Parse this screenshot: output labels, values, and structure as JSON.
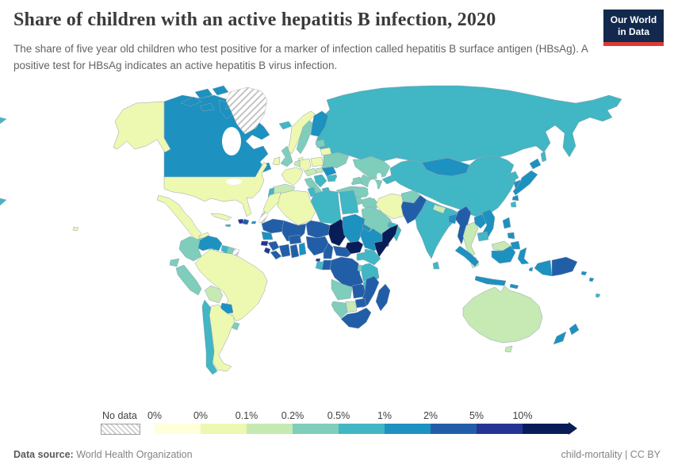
{
  "header": {
    "title": "Share of children with an active hepatitis B infection, 2020",
    "subtitle": "The share of five year old children who test positive for a marker of infection called hepatitis B surface antigen (HBsAg). A positive test for HBsAg indicates an active hepatitis B virus infection.",
    "logo": {
      "line1": "Our World",
      "line2": "in Data",
      "bg_color": "#12294d",
      "accent_color": "#dc3a34"
    }
  },
  "footer": {
    "datasource_label": "Data source:",
    "datasource_value": "World Health Organization",
    "rights": "child-mortality | CC BY"
  },
  "chart_data": {
    "type": "choropleth",
    "title": "Share of children with an active hepatitis B infection, 2020",
    "year": "2020",
    "unit": "%",
    "legend": {
      "no_data_label": "No data",
      "tick_labels": [
        "0%",
        "0%",
        "0.1%",
        "0.2%",
        "0.5%",
        "1%",
        "2%",
        "5%",
        "10%"
      ],
      "colors": [
        "#ffffd9",
        "#edf8b1",
        "#c7e9b4",
        "#7fcdbb",
        "#41b6c4",
        "#1d91c0",
        "#225ea8",
        "#253494",
        "#081d58"
      ],
      "no_data_pattern": "diagonal-hatch"
    },
    "regions": [
      {
        "id": "russia",
        "name": "Russia",
        "bin": 5
      },
      {
        "id": "canada",
        "name": "Canada",
        "bin": 6
      },
      {
        "id": "greenland",
        "name": "Greenland",
        "bin": 0
      },
      {
        "id": "usa",
        "name": "United States",
        "bin": 2
      },
      {
        "id": "mexico",
        "name": "Mexico",
        "bin": 2
      },
      {
        "id": "guatemala",
        "name": "Guatemala",
        "bin": 4
      },
      {
        "id": "honduras",
        "name": "Honduras",
        "bin": 4
      },
      {
        "id": "nicaragua",
        "name": "Nicaragua",
        "bin": 4
      },
      {
        "id": "costa-rica",
        "name": "Costa Rica",
        "bin": 5
      },
      {
        "id": "panama",
        "name": "Panama",
        "bin": 5
      },
      {
        "id": "cuba",
        "name": "Cuba",
        "bin": 2
      },
      {
        "id": "jamaica",
        "name": "Jamaica",
        "bin": 5
      },
      {
        "id": "haiti",
        "name": "Haiti",
        "bin": 8
      },
      {
        "id": "dominican-republic",
        "name": "Dominican Republic",
        "bin": 7
      },
      {
        "id": "puerto-rico",
        "name": "Puerto Rico",
        "bin": 6
      },
      {
        "id": "colombia",
        "name": "Colombia",
        "bin": 4
      },
      {
        "id": "venezuela",
        "name": "Venezuela",
        "bin": 6
      },
      {
        "id": "guyana",
        "name": "Guyana",
        "bin": 5
      },
      {
        "id": "suriname",
        "name": "Suriname",
        "bin": 4
      },
      {
        "id": "french-guiana",
        "name": "French Guiana",
        "bin": 0
      },
      {
        "id": "ecuador",
        "name": "Ecuador",
        "bin": 4
      },
      {
        "id": "peru",
        "name": "Peru",
        "bin": 4
      },
      {
        "id": "brazil",
        "name": "Brazil",
        "bin": 2
      },
      {
        "id": "bolivia",
        "name": "Bolivia",
        "bin": 3
      },
      {
        "id": "paraguay",
        "name": "Paraguay",
        "bin": 6
      },
      {
        "id": "uruguay",
        "name": "Uruguay",
        "bin": 4
      },
      {
        "id": "argentina",
        "name": "Argentina",
        "bin": 2
      },
      {
        "id": "chile",
        "name": "Chile",
        "bin": 5
      },
      {
        "id": "iceland",
        "name": "Iceland",
        "bin": 5
      },
      {
        "id": "norway",
        "name": "Norway",
        "bin": 2
      },
      {
        "id": "sweden",
        "name": "Sweden",
        "bin": 4
      },
      {
        "id": "finland",
        "name": "Finland",
        "bin": 6
      },
      {
        "id": "denmark",
        "name": "Denmark",
        "bin": 2
      },
      {
        "id": "united-kingdom",
        "name": "United Kingdom",
        "bin": 4
      },
      {
        "id": "ireland",
        "name": "Ireland",
        "bin": 2
      },
      {
        "id": "france",
        "name": "France",
        "bin": 2
      },
      {
        "id": "spain",
        "name": "Spain",
        "bin": 3
      },
      {
        "id": "portugal",
        "name": "Portugal",
        "bin": 5
      },
      {
        "id": "germany",
        "name": "Germany",
        "bin": 2
      },
      {
        "id": "benelux",
        "name": "Belgium and Netherlands",
        "bin": 3
      },
      {
        "id": "poland",
        "name": "Poland",
        "bin": 2
      },
      {
        "id": "czechia-austria",
        "name": "Czechia and Austria",
        "bin": 3
      },
      {
        "id": "hungary",
        "name": "Hungary",
        "bin": 3
      },
      {
        "id": "italy",
        "name": "Italy",
        "bin": 4
      },
      {
        "id": "balkans",
        "name": "Balkans",
        "bin": 5
      },
      {
        "id": "bulgaria",
        "name": "Bulgaria",
        "bin": 5
      },
      {
        "id": "greece",
        "name": "Greece",
        "bin": 5
      },
      {
        "id": "romania",
        "name": "Romania",
        "bin": 6
      },
      {
        "id": "ukraine",
        "name": "Ukraine",
        "bin": 4
      },
      {
        "id": "belarus",
        "name": "Belarus",
        "bin": 2
      },
      {
        "id": "baltics",
        "name": "Baltic states",
        "bin": 4
      },
      {
        "id": "turkey",
        "name": "Turkey",
        "bin": 4
      },
      {
        "id": "syria",
        "name": "Syria",
        "bin": 4
      },
      {
        "id": "jordan",
        "name": "Jordan and Israel",
        "bin": 3
      },
      {
        "id": "iraq",
        "name": "Iraq",
        "bin": 4
      },
      {
        "id": "iran",
        "name": "Iran",
        "bin": 2
      },
      {
        "id": "saudi-arabia",
        "name": "Saudi Arabia",
        "bin": 4
      },
      {
        "id": "yemen",
        "name": "Yemen",
        "bin": 9
      },
      {
        "id": "oman",
        "name": "Oman",
        "bin": 5
      },
      {
        "id": "uae",
        "name": "United Arab Emirates",
        "bin": 5
      },
      {
        "id": "kazakhstan",
        "name": "Kazakhstan",
        "bin": 4
      },
      {
        "id": "central-asia",
        "name": "Uzbekistan and Turkmenistan",
        "bin": 4
      },
      {
        "id": "kyrgyzstan",
        "name": "Kyrgyzstan and Tajikistan",
        "bin": 5
      },
      {
        "id": "caucasus",
        "name": "Caucasus",
        "bin": 4
      },
      {
        "id": "china",
        "name": "China",
        "bin": 5
      },
      {
        "id": "mongolia",
        "name": "Mongolia",
        "bin": 6
      },
      {
        "id": "north-korea",
        "name": "North Korea",
        "bin": 5
      },
      {
        "id": "south-korea",
        "name": "South Korea",
        "bin": 6
      },
      {
        "id": "japan",
        "name": "Japan",
        "bin": 6
      },
      {
        "id": "taiwan",
        "name": "Taiwan",
        "bin": 5
      },
      {
        "id": "afghanistan",
        "name": "Afghanistan",
        "bin": 4
      },
      {
        "id": "pakistan",
        "name": "Pakistan",
        "bin": 7
      },
      {
        "id": "india",
        "name": "India",
        "bin": 5
      },
      {
        "id": "nepal",
        "name": "Nepal",
        "bin": 3
      },
      {
        "id": "bangladesh",
        "name": "Bangladesh",
        "bin": 6
      },
      {
        "id": "sri-lanka",
        "name": "Sri Lanka",
        "bin": 5
      },
      {
        "id": "myanmar",
        "name": "Myanmar",
        "bin": 7
      },
      {
        "id": "thailand",
        "name": "Thailand",
        "bin": 3
      },
      {
        "id": "laos",
        "name": "Laos",
        "bin": 6
      },
      {
        "id": "vietnam",
        "name": "Vietnam",
        "bin": 6
      },
      {
        "id": "cambodia",
        "name": "Cambodia",
        "bin": 5
      },
      {
        "id": "malaysia",
        "name": "Malaysia",
        "bin": 3
      },
      {
        "id": "indonesia",
        "name": "Indonesia",
        "bin": 6
      },
      {
        "id": "philippines",
        "name": "Philippines",
        "bin": 6
      },
      {
        "id": "papua-new-guinea",
        "name": "Papua New Guinea",
        "bin": 7
      },
      {
        "id": "solomon-islands",
        "name": "Solomon Islands",
        "bin": 6
      },
      {
        "id": "fiji",
        "name": "Fiji",
        "bin": 5
      },
      {
        "id": "morocco",
        "name": "Morocco",
        "bin": 2
      },
      {
        "id": "western-sahara",
        "name": "Western Sahara",
        "bin": 0
      },
      {
        "id": "algeria",
        "name": "Algeria",
        "bin": 2
      },
      {
        "id": "tunisia",
        "name": "Tunisia",
        "bin": 5
      },
      {
        "id": "libya",
        "name": "Libya",
        "bin": 5
      },
      {
        "id": "egypt",
        "name": "Egypt",
        "bin": 5
      },
      {
        "id": "mauritania",
        "name": "Mauritania",
        "bin": 7
      },
      {
        "id": "mali",
        "name": "Mali",
        "bin": 7
      },
      {
        "id": "niger",
        "name": "Niger",
        "bin": 7
      },
      {
        "id": "chad",
        "name": "Chad",
        "bin": 9
      },
      {
        "id": "sudan",
        "name": "Sudan",
        "bin": 6
      },
      {
        "id": "eritrea",
        "name": "Eritrea",
        "bin": 6
      },
      {
        "id": "senegal",
        "name": "Senegal",
        "bin": 6
      },
      {
        "id": "guinea-bissau",
        "name": "Guinea-Bissau",
        "bin": 8
      },
      {
        "id": "guinea",
        "name": "Guinea",
        "bin": 7
      },
      {
        "id": "sierra-leone",
        "name": "Sierra Leone",
        "bin": 8
      },
      {
        "id": "liberia",
        "name": "Liberia",
        "bin": 7
      },
      {
        "id": "ivory-coast",
        "name": "Cote d'Ivoire",
        "bin": 7
      },
      {
        "id": "burkina-faso",
        "name": "Burkina Faso",
        "bin": 7
      },
      {
        "id": "ghana",
        "name": "Ghana",
        "bin": 7
      },
      {
        "id": "togo-benin",
        "name": "Togo and Benin",
        "bin": 6
      },
      {
        "id": "nigeria",
        "name": "Nigeria",
        "bin": 7
      },
      {
        "id": "cameroon",
        "name": "Cameroon",
        "bin": 7
      },
      {
        "id": "central-african-republic",
        "name": "Central African Republic",
        "bin": 7
      },
      {
        "id": "south-sudan",
        "name": "South Sudan",
        "bin": 9
      },
      {
        "id": "ethiopia",
        "name": "Ethiopia",
        "bin": 6
      },
      {
        "id": "somalia",
        "name": "Somalia",
        "bin": 9
      },
      {
        "id": "kenya",
        "name": "Kenya",
        "bin": 5
      },
      {
        "id": "uganda",
        "name": "Uganda",
        "bin": 5
      },
      {
        "id": "drc",
        "name": "Democratic Republic of Congo",
        "bin": 7
      },
      {
        "id": "congo",
        "name": "Congo",
        "bin": 7
      },
      {
        "id": "gabon",
        "name": "Gabon",
        "bin": 5
      },
      {
        "id": "equatorial-guinea",
        "name": "Equatorial Guinea",
        "bin": 8
      },
      {
        "id": "rwanda-burundi",
        "name": "Rwanda and Burundi",
        "bin": 4
      },
      {
        "id": "tanzania",
        "name": "Tanzania",
        "bin": 5
      },
      {
        "id": "angola",
        "name": "Angola",
        "bin": 4
      },
      {
        "id": "zambia",
        "name": "Zambia",
        "bin": 7
      },
      {
        "id": "malawi",
        "name": "Malawi",
        "bin": 5
      },
      {
        "id": "mozambique",
        "name": "Mozambique",
        "bin": 7
      },
      {
        "id": "zimbabwe",
        "name": "Zimbabwe",
        "bin": 7
      },
      {
        "id": "botswana",
        "name": "Botswana",
        "bin": 3
      },
      {
        "id": "namibia",
        "name": "Namibia",
        "bin": 4
      },
      {
        "id": "south-africa",
        "name": "South Africa",
        "bin": 7
      },
      {
        "id": "madagascar",
        "name": "Madagascar",
        "bin": 7
      },
      {
        "id": "australia",
        "name": "Australia",
        "bin": 3
      },
      {
        "id": "tasmania",
        "name": "Tasmania",
        "bin": 3
      },
      {
        "id": "new-zealand",
        "name": "New Zealand",
        "bin": 6
      }
    ]
  }
}
